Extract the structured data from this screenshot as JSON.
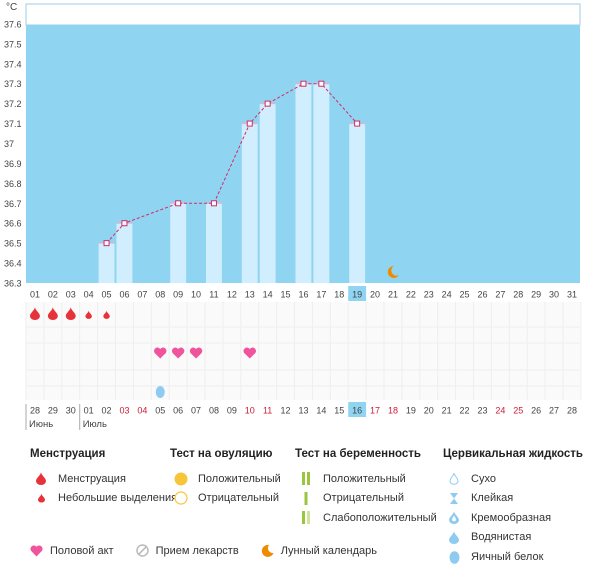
{
  "chart_data": {
    "type": "bar",
    "unit": "°C",
    "ylim": [
      36.3,
      37.7
    ],
    "yticks": [
      "37.6",
      "37.5",
      "37.4",
      "37.3",
      "37.2",
      "37.1",
      "37",
      "36.9",
      "36.8",
      "36.7",
      "36.6",
      "36.5",
      "36.4",
      "36.3"
    ],
    "cycle_days": [
      "01",
      "02",
      "03",
      "04",
      "05",
      "06",
      "07",
      "08",
      "09",
      "10",
      "11",
      "12",
      "13",
      "14",
      "15",
      "16",
      "17",
      "18",
      "19",
      "20",
      "21",
      "22",
      "23",
      "24",
      "25",
      "26",
      "27",
      "28",
      "29",
      "30",
      "31"
    ],
    "current_day": "19",
    "temperature": {
      "days": [
        "05",
        "06",
        "09",
        "11",
        "13",
        "14",
        "16",
        "17",
        "19"
      ],
      "values": [
        36.5,
        36.6,
        36.7,
        36.7,
        37.1,
        37.2,
        37.3,
        37.3,
        37.1
      ]
    },
    "moon_day": "21",
    "menstruation_days": [
      "01",
      "02",
      "03"
    ],
    "spotting_days": [
      "04",
      "05"
    ],
    "intercourse_days": [
      "08",
      "09",
      "10",
      "13"
    ],
    "egg_white_days": [
      "09"
    ],
    "dates": [
      "28",
      "29",
      "30",
      "01",
      "02",
      "03",
      "04",
      "05",
      "06",
      "07",
      "08",
      "09",
      "10",
      "11",
      "12",
      "13",
      "14",
      "15",
      "16",
      "17",
      "18",
      "19",
      "20",
      "21",
      "22",
      "23",
      "24",
      "25",
      "26",
      "27",
      "28"
    ],
    "dates_red": [
      "03",
      "04",
      "10",
      "11",
      "17",
      "18",
      "24",
      "25"
    ],
    "today_date": "16",
    "months": [
      {
        "label": "Июнь",
        "at": "28"
      },
      {
        "label": "Июль",
        "at": "01"
      }
    ],
    "colors": {
      "plot_bg": "#8fd5f2",
      "bar": "#d0eefd",
      "line": "#d22b67",
      "menstruation": "#e8323a",
      "heart": "#f0549c",
      "egg_white": "#8ecbf0",
      "moon": "#f08a00",
      "highlight": "#8fd5f2",
      "red_date": "#cc1b3a"
    }
  },
  "legend": {
    "menstruation": {
      "title": "Менструация",
      "items": [
        "Менструация",
        "Небольшие выделения"
      ]
    },
    "ovulation_test": {
      "title": "Тест на овуляцию",
      "items": [
        "Положительный",
        "Отрицательный"
      ]
    },
    "pregnancy_test": {
      "title": "Тест на беременность",
      "items": [
        "Положительный",
        "Отрицательный",
        "Слабоположительный"
      ]
    },
    "cervical": {
      "title": "Цервикальная жидкость",
      "items": [
        "Сухо",
        "Клейкая",
        "Кремообразная",
        "Водянистая",
        "Яичный белок"
      ]
    }
  },
  "bottom_legend": [
    "Половой акт",
    "Прием лекарств",
    "Лунный календарь"
  ]
}
